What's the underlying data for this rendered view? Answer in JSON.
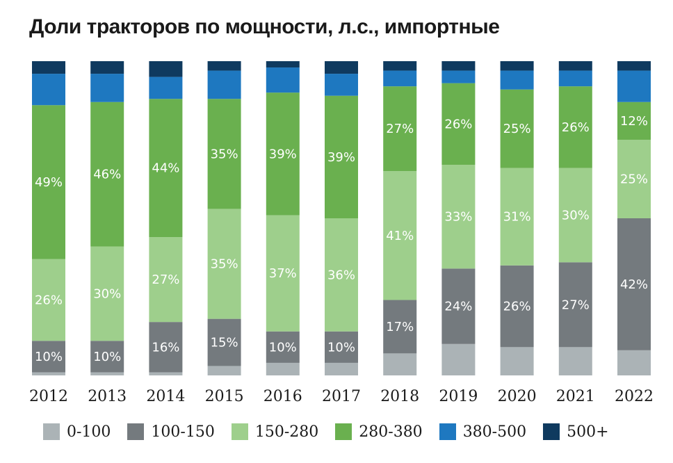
{
  "chart_data": {
    "type": "bar",
    "stacked": true,
    "normalized": true,
    "title": "Доли тракторов по мощности,  л.с., импортные",
    "categories": [
      "2012",
      "2013",
      "2014",
      "2015",
      "2016",
      "2017",
      "2018",
      "2019",
      "2020",
      "2021",
      "2022"
    ],
    "series": [
      {
        "name": "0-100",
        "color": "#abb3b6",
        "values": [
          1,
          1,
          1,
          3,
          4,
          4,
          7,
          10,
          9,
          9,
          8
        ],
        "labels": [
          "",
          "",
          "",
          "",
          "",
          "",
          "",
          "",
          "",
          "",
          ""
        ]
      },
      {
        "name": "100-150",
        "color": "#747a7e",
        "values": [
          10,
          10,
          16,
          15,
          10,
          10,
          17,
          24,
          26,
          27,
          42
        ],
        "labels": [
          "10%",
          "10%",
          "16%",
          "15%",
          "10%",
          "10%",
          "17%",
          "24%",
          "26%",
          "27%",
          "42%"
        ]
      },
      {
        "name": "150-280",
        "color": "#9ecf8c",
        "values": [
          26,
          30,
          27,
          35,
          37,
          36,
          41,
          33,
          31,
          30,
          25
        ],
        "labels": [
          "26%",
          "30%",
          "27%",
          "35%",
          "37%",
          "36%",
          "41%",
          "33%",
          "31%",
          "30%",
          "25%"
        ]
      },
      {
        "name": "280-380",
        "color": "#6ab04f",
        "values": [
          49,
          46,
          44,
          35,
          39,
          39,
          27,
          26,
          25,
          26,
          12
        ],
        "labels": [
          "49%",
          "46%",
          "44%",
          "35%",
          "39%",
          "39%",
          "27%",
          "26%",
          "25%",
          "26%",
          "12%"
        ]
      },
      {
        "name": "380-500",
        "color": "#1e78c0",
        "values": [
          10,
          9,
          7,
          9,
          8,
          7,
          5,
          4,
          6,
          5,
          10
        ],
        "labels": [
          "",
          "",
          "",
          "",
          "",
          "",
          "",
          "",
          "",
          "",
          ""
        ]
      },
      {
        "name": "500+",
        "color": "#0f3a5f",
        "values": [
          4,
          4,
          5,
          3,
          2,
          4,
          3,
          3,
          3,
          3,
          3
        ],
        "labels": [
          "",
          "",
          "",
          "",
          "",
          "",
          "",
          "",
          "",
          "",
          ""
        ]
      }
    ],
    "ylim": [
      0,
      100
    ],
    "grid": false,
    "legend_position": "bottom"
  }
}
